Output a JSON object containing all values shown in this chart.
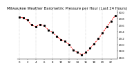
{
  "title": "Milwaukee Weather Barometric Pressure per Hour (Last 24 Hours)",
  "ylabel_right": [
    "30.0",
    "29.8",
    "29.6",
    "29.4",
    "29.2",
    "29.0",
    "28.8",
    "28.6"
  ],
  "hours": [
    0,
    1,
    2,
    3,
    4,
    5,
    6,
    7,
    8,
    9,
    10,
    11,
    12,
    13,
    14,
    15,
    16,
    17,
    18,
    19,
    20,
    21,
    22,
    23
  ],
  "pressure": [
    29.85,
    29.82,
    29.75,
    29.6,
    29.55,
    29.62,
    29.58,
    29.45,
    29.38,
    29.25,
    29.15,
    29.1,
    29.0,
    28.82,
    28.75,
    28.68,
    28.75,
    28.88,
    29.02,
    29.18,
    29.35,
    29.55,
    29.72,
    29.88
  ],
  "line_color": "#ff0000",
  "marker_color": "#000000",
  "bg_color": "#ffffff",
  "grid_color": "#bbbbbb",
  "ylim_min": 28.55,
  "ylim_max": 30.05,
  "ytick_vals": [
    28.6,
    28.8,
    29.0,
    29.2,
    29.4,
    29.6,
    29.8,
    30.0
  ],
  "title_fontsize": 3.8,
  "tick_fontsize": 2.8,
  "label_fontsize": 3.0,
  "vgrid_positions": [
    0,
    4,
    8,
    12,
    16,
    20
  ],
  "xtick_positions": [
    0,
    2,
    4,
    6,
    8,
    10,
    12,
    14,
    16,
    18,
    20,
    22
  ]
}
